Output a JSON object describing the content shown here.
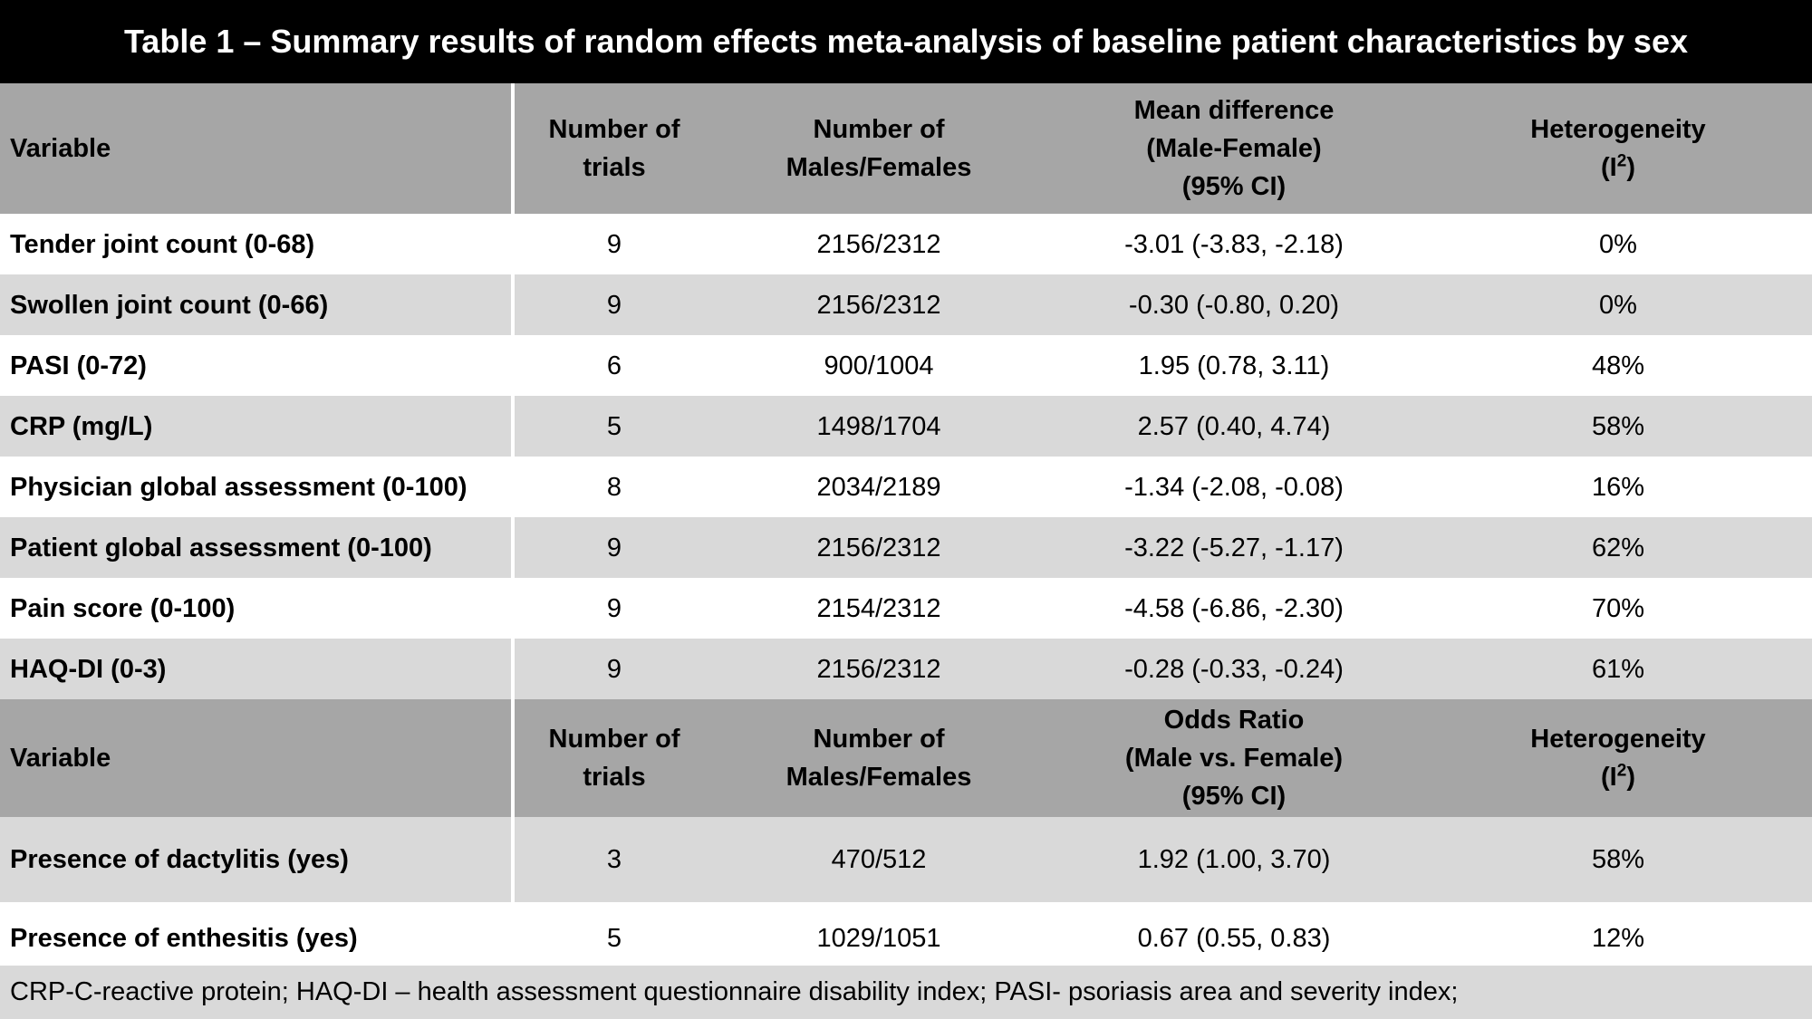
{
  "title": "Table 1 – Summary results of random effects meta-analysis of baseline patient characteristics by sex",
  "header1": {
    "variable": "Variable",
    "trials_l1": "Number of",
    "trials_l2": "trials",
    "mf_l1": "Number of",
    "mf_l2": "Males/Females",
    "effect_l1": "Mean difference",
    "effect_l2": "(Male-Female)",
    "effect_l3": "(95% CI)",
    "het_l1": "Heterogeneity",
    "het_l2_pre": "(I",
    "het_l2_sup": "2",
    "het_l2_post": ")"
  },
  "rows1": [
    {
      "variable": "Tender joint count (0-68)",
      "trials": "9",
      "mf": "2156/2312",
      "effect": "-3.01 (-3.83, -2.18)",
      "het": "0%"
    },
    {
      "variable": "Swollen joint count (0-66)",
      "trials": "9",
      "mf": "2156/2312",
      "effect": "-0.30 (-0.80, 0.20)",
      "het": "0%"
    },
    {
      "variable": "PASI (0-72)",
      "trials": "6",
      "mf": "900/1004",
      "effect": "1.95 (0.78, 3.11)",
      "het": "48%"
    },
    {
      "variable": "CRP (mg/L)",
      "trials": "5",
      "mf": "1498/1704",
      "effect": "2.57 (0.40, 4.74)",
      "het": "58%"
    },
    {
      "variable": "Physician global assessment (0-100)",
      "trials": "8",
      "mf": "2034/2189",
      "effect": "-1.34 (-2.08, -0.08)",
      "het": "16%"
    },
    {
      "variable": "Patient global assessment (0-100)",
      "trials": "9",
      "mf": "2156/2312",
      "effect": "-3.22 (-5.27, -1.17)",
      "het": "62%"
    },
    {
      "variable": "Pain score (0-100)",
      "trials": "9",
      "mf": "2154/2312",
      "effect": "-4.58 (-6.86, -2.30)",
      "het": "70%"
    },
    {
      "variable": "HAQ-DI (0-3)",
      "trials": "9",
      "mf": "2156/2312",
      "effect": "-0.28 (-0.33, -0.24)",
      "het": "61%"
    }
  ],
  "header2": {
    "variable": "Variable",
    "trials_l1": "Number of",
    "trials_l2": "trials",
    "mf_l1": "Number of",
    "mf_l2": "Males/Females",
    "effect_l1": "Odds Ratio",
    "effect_l2": "(Male vs. Female)",
    "effect_l3": "(95% CI)",
    "het_l1": "Heterogeneity",
    "het_l2_pre": "(I",
    "het_l2_sup": "2",
    "het_l2_post": ")"
  },
  "rows2": [
    {
      "variable": "Presence of dactylitis (yes)",
      "trials": "3",
      "mf": "470/512",
      "effect": "1.92 (1.00, 3.70)",
      "het": "58%"
    },
    {
      "variable": "Presence of enthesitis (yes)",
      "trials": "5",
      "mf": "1029/1051",
      "effect": "0.67 (0.55, 0.83)",
      "het": "12%"
    }
  ],
  "footnote": "CRP-C-reactive protein; HAQ-DI – health assessment questionnaire disability index; PASI- psoriasis area and severity index;",
  "colors": {
    "title_bg": "#000000",
    "header_bg": "#a6a6a6",
    "shade_bg": "#d9d9d9",
    "light_bg": "#ffffff"
  }
}
